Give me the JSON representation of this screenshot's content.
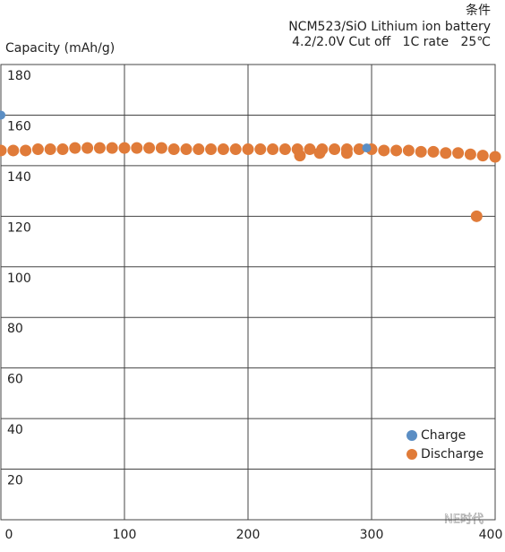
{
  "chart_data": {
    "type": "scatter",
    "header": [
      "条件",
      "NCM523/SiO Lithium ion battery",
      "4.2/2.0V Cut off   1C rate   25℃"
    ],
    "y_label": "Capacity (mAh/g)",
    "watermark": "NE时代",
    "xlim": [
      0,
      400
    ],
    "xticks": [
      0,
      100,
      200,
      300,
      400
    ],
    "ylim": [
      0,
      180
    ],
    "yticks": [
      20,
      40,
      60,
      80,
      100,
      120,
      140,
      160,
      180
    ],
    "grid": true,
    "legend": "lower right",
    "series": [
      {
        "name": "Charge",
        "color": "#5b8ec4",
        "x": [
          0,
          296
        ],
        "values": [
          160,
          147
        ]
      },
      {
        "name": "Discharge",
        "color": "#e07b39",
        "x": [
          0,
          10,
          20,
          30,
          40,
          50,
          60,
          70,
          80,
          90,
          100,
          110,
          120,
          130,
          140,
          150,
          160,
          170,
          180,
          190,
          200,
          210,
          220,
          230,
          240,
          250,
          260,
          270,
          280,
          290,
          300,
          310,
          320,
          330,
          340,
          350,
          360,
          370,
          380,
          390,
          400,
          242,
          258,
          280,
          385
        ],
        "values": [
          146,
          146,
          146,
          146.5,
          146.5,
          146.5,
          147,
          147,
          147,
          147,
          147,
          147,
          147,
          147,
          146.5,
          146.5,
          146.5,
          146.5,
          146.5,
          146.5,
          146.5,
          146.5,
          146.5,
          146.5,
          146.5,
          146.5,
          146.5,
          146.5,
          146.5,
          146.5,
          146.5,
          146,
          146,
          146,
          145.5,
          145.5,
          145,
          145,
          144.5,
          144,
          143.5,
          144,
          145,
          145,
          120
        ]
      }
    ]
  }
}
